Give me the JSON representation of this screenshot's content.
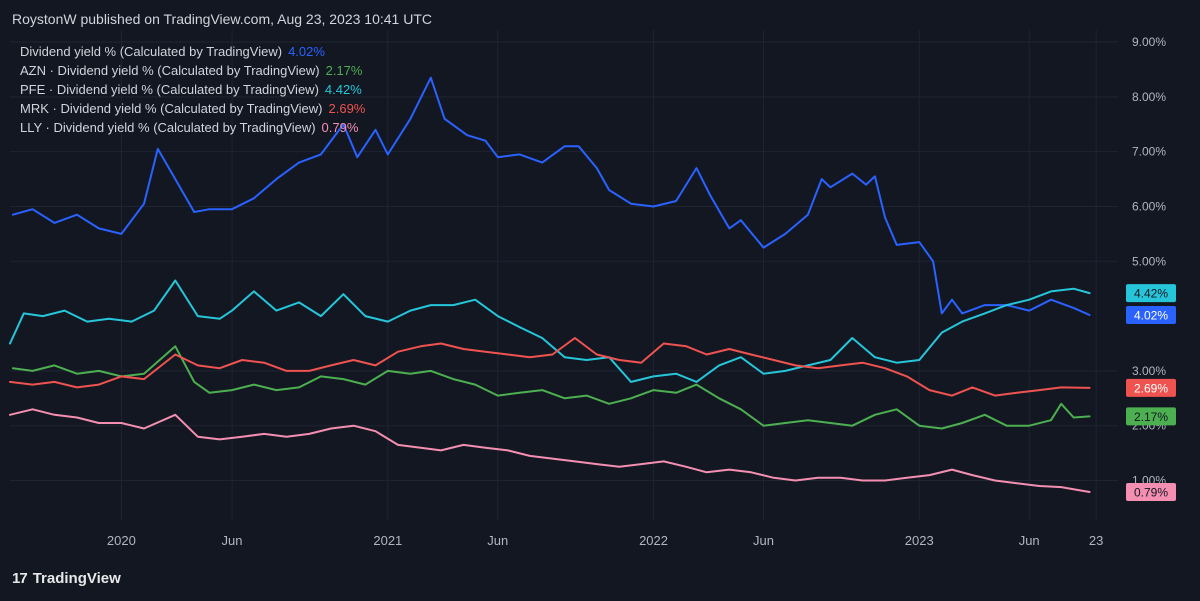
{
  "header": {
    "publisher_line": "RoystonW published on TradingView.com, Aug 23, 2023 10:41 UTC"
  },
  "footer": {
    "brand_mark": "17",
    "brand_name": "TradingView"
  },
  "legend": [
    {
      "label": "Dividend yield % (Calculated by TradingView)",
      "value": "4.02%",
      "color": "#2962ff"
    },
    {
      "label": "AZN · Dividend yield % (Calculated by TradingView)",
      "value": "2.17%",
      "color": "#4caf50"
    },
    {
      "label": "PFE · Dividend yield % (Calculated by TradingView)",
      "value": "4.42%",
      "color": "#26c6da"
    },
    {
      "label": "MRK · Dividend yield % (Calculated by TradingView)",
      "value": "2.69%",
      "color": "#ef5350"
    },
    {
      "label": "LLY · Dividend yield % (Calculated by TradingView)",
      "value": "0.79%",
      "color": "#f48fb1"
    }
  ],
  "chart_data": {
    "type": "line",
    "y_ticks": [
      "9.00%",
      "8.00%",
      "7.00%",
      "6.00%",
      "5.00%",
      "3.00%",
      "2.00%",
      "1.00%"
    ],
    "y_tick_values": [
      9,
      8,
      7,
      6,
      5,
      3,
      2,
      1
    ],
    "x_ticks": [
      "2020",
      "Jun",
      "2021",
      "Jun",
      "2022",
      "Jun",
      "2023",
      "Jun",
      "23"
    ],
    "x_tick_dates": [
      "2020-01-01",
      "2020-06-01",
      "2021-01-01",
      "2021-06-01",
      "2022-01-01",
      "2022-06-01",
      "2023-01-01",
      "2023-06-01",
      "2023-09-01"
    ],
    "ylim": [
      0.28,
      9.22
    ],
    "xlim": [
      "2019-08-01",
      "2023-10-01"
    ],
    "grid": true,
    "legend_position": "top-left",
    "series": [
      {
        "name": "Dividend yield % (Calculated by TradingView)",
        "color": "#2962ff",
        "last_label": "4.02%",
        "x": [
          "2019-08-05",
          "2019-09-01",
          "2019-10-01",
          "2019-11-01",
          "2019-12-01",
          "2020-01-01",
          "2020-02-01",
          "2020-02-20",
          "2020-03-15",
          "2020-04-10",
          "2020-05-01",
          "2020-06-01",
          "2020-07-01",
          "2020-08-01",
          "2020-09-01",
          "2020-10-01",
          "2020-11-01",
          "2020-11-20",
          "2020-12-15",
          "2021-01-01",
          "2021-02-01",
          "2021-03-01",
          "2021-03-20",
          "2021-04-20",
          "2021-05-15",
          "2021-06-01",
          "2021-07-01",
          "2021-08-01",
          "2021-09-01",
          "2021-09-20",
          "2021-10-15",
          "2021-11-01",
          "2021-12-01",
          "2022-01-01",
          "2022-02-01",
          "2022-03-01",
          "2022-03-20",
          "2022-04-15",
          "2022-05-01",
          "2022-06-01",
          "2022-07-01",
          "2022-08-01",
          "2022-08-20",
          "2022-09-01",
          "2022-10-01",
          "2022-10-20",
          "2022-11-01",
          "2022-11-15",
          "2022-12-01",
          "2023-01-01",
          "2023-01-20",
          "2023-02-01",
          "2023-02-15",
          "2023-03-01",
          "2023-04-01",
          "2023-05-01",
          "2023-06-01",
          "2023-07-01",
          "2023-08-01",
          "2023-08-23"
        ],
        "y": [
          5.85,
          5.95,
          5.7,
          5.85,
          5.6,
          5.5,
          6.05,
          7.05,
          6.5,
          5.9,
          5.95,
          5.95,
          6.15,
          6.5,
          6.8,
          6.95,
          7.5,
          6.9,
          7.4,
          6.95,
          7.6,
          8.35,
          7.6,
          7.3,
          7.2,
          6.9,
          6.95,
          6.8,
          7.1,
          7.1,
          6.7,
          6.3,
          6.05,
          6.0,
          6.1,
          6.7,
          6.2,
          5.6,
          5.75,
          5.25,
          5.5,
          5.85,
          6.5,
          6.35,
          6.6,
          6.4,
          6.55,
          5.8,
          5.3,
          5.35,
          5.0,
          4.05,
          4.3,
          4.05,
          4.2,
          4.2,
          4.1,
          4.3,
          4.15,
          4.02
        ]
      },
      {
        "name": "AZN · Dividend yield % (Calculated by TradingView)",
        "color": "#4caf50",
        "last_label": "2.17%",
        "x": [
          "2019-08-05",
          "2019-09-01",
          "2019-10-01",
          "2019-11-01",
          "2019-12-01",
          "2020-01-01",
          "2020-02-01",
          "2020-03-15",
          "2020-04-10",
          "2020-05-01",
          "2020-06-01",
          "2020-07-01",
          "2020-08-01",
          "2020-09-01",
          "2020-10-01",
          "2020-11-01",
          "2020-12-01",
          "2021-01-01",
          "2021-02-01",
          "2021-03-01",
          "2021-04-01",
          "2021-05-01",
          "2021-06-01",
          "2021-07-01",
          "2021-08-01",
          "2021-09-01",
          "2021-10-01",
          "2021-11-01",
          "2021-12-01",
          "2022-01-01",
          "2022-02-01",
          "2022-03-01",
          "2022-04-01",
          "2022-05-01",
          "2022-06-01",
          "2022-07-01",
          "2022-08-01",
          "2022-09-01",
          "2022-10-01",
          "2022-11-01",
          "2022-12-01",
          "2023-01-01",
          "2023-02-01",
          "2023-03-01",
          "2023-04-01",
          "2023-05-01",
          "2023-06-01",
          "2023-07-01",
          "2023-07-15",
          "2023-08-01",
          "2023-08-23"
        ],
        "y": [
          3.05,
          3.0,
          3.1,
          2.95,
          3.0,
          2.9,
          2.95,
          3.45,
          2.8,
          2.6,
          2.65,
          2.75,
          2.65,
          2.7,
          2.9,
          2.85,
          2.75,
          3.0,
          2.95,
          3.0,
          2.85,
          2.75,
          2.55,
          2.6,
          2.65,
          2.5,
          2.55,
          2.4,
          2.5,
          2.65,
          2.6,
          2.75,
          2.5,
          2.3,
          2.0,
          2.05,
          2.1,
          2.05,
          2.0,
          2.2,
          2.3,
          2.0,
          1.95,
          2.05,
          2.2,
          2.0,
          2.0,
          2.1,
          2.4,
          2.15,
          2.17
        ]
      },
      {
        "name": "PFE · Dividend yield % (Calculated by TradingView)",
        "color": "#26c6da",
        "last_label": "4.42%",
        "x": [
          "2019-08-01",
          "2019-08-20",
          "2019-09-15",
          "2019-10-15",
          "2019-11-15",
          "2019-12-15",
          "2020-01-15",
          "2020-02-15",
          "2020-03-15",
          "2020-04-15",
          "2020-05-15",
          "2020-06-01",
          "2020-07-01",
          "2020-08-01",
          "2020-09-01",
          "2020-10-01",
          "2020-11-01",
          "2020-12-01",
          "2021-01-01",
          "2021-02-01",
          "2021-03-01",
          "2021-04-01",
          "2021-05-01",
          "2021-06-01",
          "2021-07-01",
          "2021-08-01",
          "2021-09-01",
          "2021-10-01",
          "2021-11-01",
          "2021-12-01",
          "2022-01-01",
          "2022-02-01",
          "2022-03-01",
          "2022-04-01",
          "2022-05-01",
          "2022-06-01",
          "2022-07-01",
          "2022-08-01",
          "2022-09-01",
          "2022-10-01",
          "2022-11-01",
          "2022-12-01",
          "2023-01-01",
          "2023-02-01",
          "2023-03-01",
          "2023-04-01",
          "2023-05-01",
          "2023-06-01",
          "2023-07-01",
          "2023-08-01",
          "2023-08-23"
        ],
        "y": [
          3.5,
          4.05,
          4.0,
          4.1,
          3.9,
          3.95,
          3.9,
          4.1,
          4.65,
          4.0,
          3.95,
          4.1,
          4.45,
          4.1,
          4.25,
          4.0,
          4.4,
          4.0,
          3.9,
          4.1,
          4.2,
          4.2,
          4.3,
          4.0,
          3.8,
          3.6,
          3.25,
          3.2,
          3.25,
          2.8,
          2.9,
          2.95,
          2.8,
          3.1,
          3.25,
          2.95,
          3.0,
          3.1,
          3.2,
          3.6,
          3.25,
          3.15,
          3.2,
          3.7,
          3.9,
          4.05,
          4.2,
          4.3,
          4.45,
          4.5,
          4.42
        ]
      },
      {
        "name": "MRK · Dividend yield % (Calculated by TradingView)",
        "color": "#ef5350",
        "last_label": "2.69%",
        "x": [
          "2019-08-01",
          "2019-09-01",
          "2019-10-01",
          "2019-11-01",
          "2019-12-01",
          "2020-01-01",
          "2020-02-01",
          "2020-03-15",
          "2020-04-15",
          "2020-05-15",
          "2020-06-15",
          "2020-07-15",
          "2020-08-15",
          "2020-09-15",
          "2020-10-15",
          "2020-11-15",
          "2020-12-15",
          "2021-01-15",
          "2021-02-15",
          "2021-03-15",
          "2021-04-15",
          "2021-05-15",
          "2021-06-15",
          "2021-07-15",
          "2021-08-15",
          "2021-09-15",
          "2021-10-15",
          "2021-11-15",
          "2021-12-15",
          "2022-01-15",
          "2022-02-15",
          "2022-03-15",
          "2022-04-15",
          "2022-05-15",
          "2022-06-15",
          "2022-07-15",
          "2022-08-15",
          "2022-09-15",
          "2022-10-15",
          "2022-11-15",
          "2022-12-15",
          "2023-01-15",
          "2023-02-15",
          "2023-03-15",
          "2023-04-15",
          "2023-05-15",
          "2023-06-15",
          "2023-07-15",
          "2023-08-23"
        ],
        "y": [
          2.8,
          2.75,
          2.8,
          2.7,
          2.75,
          2.9,
          2.85,
          3.3,
          3.1,
          3.05,
          3.2,
          3.15,
          3.0,
          3.0,
          3.1,
          3.2,
          3.1,
          3.35,
          3.45,
          3.5,
          3.4,
          3.35,
          3.3,
          3.25,
          3.3,
          3.6,
          3.3,
          3.2,
          3.15,
          3.5,
          3.45,
          3.3,
          3.4,
          3.3,
          3.2,
          3.1,
          3.05,
          3.1,
          3.15,
          3.05,
          2.9,
          2.65,
          2.55,
          2.7,
          2.55,
          2.6,
          2.65,
          2.7,
          2.69
        ]
      },
      {
        "name": "LLY · Dividend yield % (Calculated by TradingView)",
        "color": "#f48fb1",
        "last_label": "0.79%",
        "x": [
          "2019-08-01",
          "2019-09-01",
          "2019-10-01",
          "2019-11-01",
          "2019-12-01",
          "2020-01-01",
          "2020-02-01",
          "2020-03-15",
          "2020-04-15",
          "2020-05-15",
          "2020-06-15",
          "2020-07-15",
          "2020-08-15",
          "2020-09-15",
          "2020-10-15",
          "2020-11-15",
          "2020-12-15",
          "2021-01-15",
          "2021-02-15",
          "2021-03-15",
          "2021-04-15",
          "2021-05-15",
          "2021-06-15",
          "2021-07-15",
          "2021-08-15",
          "2021-09-15",
          "2021-10-15",
          "2021-11-15",
          "2021-12-15",
          "2022-01-15",
          "2022-02-15",
          "2022-03-15",
          "2022-04-15",
          "2022-05-15",
          "2022-06-15",
          "2022-07-15",
          "2022-08-15",
          "2022-09-15",
          "2022-10-15",
          "2022-11-15",
          "2022-12-15",
          "2023-01-15",
          "2023-02-15",
          "2023-03-15",
          "2023-04-15",
          "2023-05-15",
          "2023-06-15",
          "2023-07-15",
          "2023-08-23"
        ],
        "y": [
          2.2,
          2.3,
          2.2,
          2.15,
          2.05,
          2.05,
          1.95,
          2.2,
          1.8,
          1.75,
          1.8,
          1.85,
          1.8,
          1.85,
          1.95,
          2.0,
          1.9,
          1.65,
          1.6,
          1.55,
          1.65,
          1.6,
          1.55,
          1.45,
          1.4,
          1.35,
          1.3,
          1.25,
          1.3,
          1.35,
          1.25,
          1.15,
          1.2,
          1.15,
          1.05,
          1.0,
          1.05,
          1.05,
          1.0,
          1.0,
          1.05,
          1.1,
          1.2,
          1.1,
          1.0,
          0.95,
          0.9,
          0.88,
          0.79
        ]
      }
    ]
  }
}
